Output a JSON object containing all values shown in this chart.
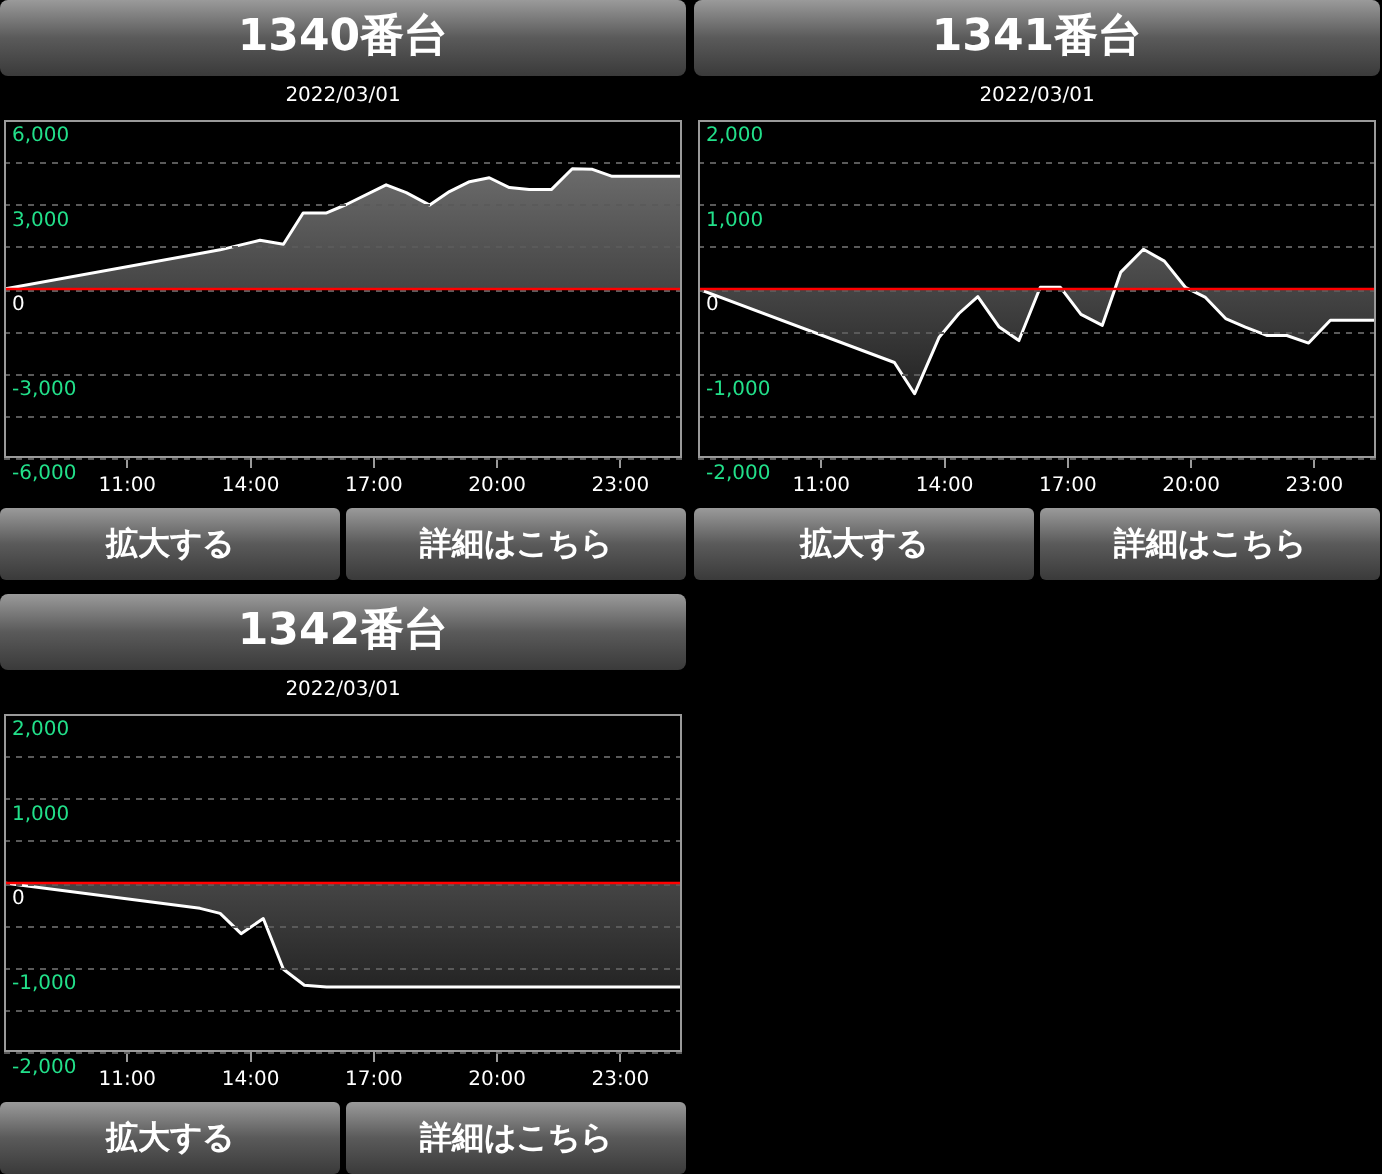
{
  "chart_data": [
    {
      "type": "area",
      "title": "1340番台",
      "subtitle": "2022/03/01",
      "series": [
        {
          "color": "#ffffff",
          "x": [
            8,
            13.26,
            14.23,
            14.8,
            15.28,
            15.85,
            16.33,
            17.3,
            17.79,
            18.36,
            18.84,
            19.33,
            19.81,
            20.3,
            20.78,
            21.32,
            21.83,
            22.32,
            22.8,
            24.5
          ],
          "values": [
            0,
            1390,
            1730,
            1590,
            2700,
            2700,
            3000,
            3700,
            3420,
            2980,
            3460,
            3810,
            3950,
            3600,
            3530,
            3530,
            4270,
            4250,
            4000,
            4000
          ]
        }
      ],
      "xlim": [
        8,
        24.5
      ],
      "xticks": [
        {
          "value": 11,
          "label": "11:00"
        },
        {
          "value": 14,
          "label": "14:00"
        },
        {
          "value": 17,
          "label": "17:00"
        },
        {
          "value": 20,
          "label": "20:00"
        },
        {
          "value": 23,
          "label": "23:00"
        }
      ],
      "ylim": [
        -6000,
        6000
      ],
      "yticks": [
        {
          "value": -6000,
          "label": "-6,000"
        },
        {
          "value": -4500,
          "label": null
        },
        {
          "value": -3000,
          "label": "-3,000"
        },
        {
          "value": -1500,
          "label": null
        },
        {
          "value": 0,
          "label": "0"
        },
        {
          "value": 1500,
          "label": null
        },
        {
          "value": 3000,
          "label": "3,000"
        },
        {
          "value": 4500,
          "label": null
        },
        {
          "value": 6000,
          "label": "6,000"
        }
      ],
      "grid": "y",
      "legend": false,
      "marker": "none",
      "line_style": "solid",
      "ref_lines": [
        {
          "axis": "y",
          "value": 0,
          "color": "#ff0000"
        }
      ],
      "annotations": [
        "拡大する",
        "詳細はこちら"
      ]
    },
    {
      "type": "area",
      "title": "1341番台",
      "subtitle": "2022/03/01",
      "series": [
        {
          "color": "#ffffff",
          "x": [
            8,
            12.78,
            13.27,
            13.87,
            14.35,
            14.81,
            15.33,
            15.81,
            16.33,
            16.82,
            17.32,
            17.84,
            18.29,
            18.84,
            19.35,
            19.86,
            20.35,
            20.84,
            21.32,
            21.84,
            22.33,
            22.86,
            23.39,
            24.5
          ],
          "values": [
            0,
            -870,
            -1240,
            -570,
            -290,
            -90,
            -450,
            -610,
            20,
            20,
            -300,
            -430,
            200,
            470,
            330,
            20,
            -100,
            -350,
            -450,
            -550,
            -550,
            -640,
            -370,
            -370
          ]
        }
      ],
      "xlim": [
        8,
        24.5
      ],
      "xticks": [
        {
          "value": 11,
          "label": "11:00"
        },
        {
          "value": 14,
          "label": "14:00"
        },
        {
          "value": 17,
          "label": "17:00"
        },
        {
          "value": 20,
          "label": "20:00"
        },
        {
          "value": 23,
          "label": "23:00"
        }
      ],
      "ylim": [
        -2000,
        2000
      ],
      "yticks": [
        {
          "value": -2000,
          "label": "-2,000"
        },
        {
          "value": -1500,
          "label": null
        },
        {
          "value": -1000,
          "label": "-1,000"
        },
        {
          "value": -500,
          "label": null
        },
        0,
        {
          "value": 500,
          "label": null
        },
        {
          "value": 1000,
          "label": "1,000"
        },
        {
          "value": 1500,
          "label": null
        },
        {
          "value": 2000,
          "label": "2,000"
        }
      ],
      "grid": "y",
      "legend": false,
      "marker": "none",
      "line_style": "solid",
      "ref_lines": [
        {
          "axis": "y",
          "value": 0,
          "color": "#ff0000"
        }
      ],
      "annotations": [
        "拡大する",
        "詳細はこちら"
      ]
    },
    {
      "type": "area",
      "title": "1342番台",
      "subtitle": "2022/03/01",
      "series": [
        {
          "color": "#ffffff",
          "x": [
            8,
            12.77,
            13.26,
            13.77,
            14.31,
            14.8,
            15.31,
            15.85,
            24.5
          ],
          "values": [
            0,
            -300,
            -360,
            -600,
            -420,
            -1020,
            -1210,
            -1230,
            -1230
          ]
        }
      ],
      "xlim": [
        8,
        24.5
      ],
      "xticks": [
        {
          "value": 11,
          "label": "11:00"
        },
        {
          "value": 14,
          "label": "14:00"
        },
        {
          "value": 17,
          "label": "17:00"
        },
        {
          "value": 20,
          "label": "20:00"
        },
        {
          "value": 23,
          "label": "23:00"
        }
      ],
      "ylim": [
        -2000,
        2000
      ],
      "yticks": [
        {
          "value": -2000,
          "label": "-2,000"
        },
        {
          "value": -1500,
          "label": null
        },
        {
          "value": -1000,
          "label": "-1,000"
        },
        {
          "value": -500,
          "label": null
        },
        0,
        {
          "value": 500,
          "label": null
        },
        {
          "value": 1000,
          "label": "1,000"
        },
        {
          "value": 1500,
          "label": null
        },
        {
          "value": 2000,
          "label": "2,000"
        }
      ],
      "grid": "y",
      "legend": false,
      "marker": "none",
      "line_style": "solid",
      "ref_lines": [
        {
          "axis": "y",
          "value": 0,
          "color": "#ff0000"
        }
      ],
      "annotations": [
        "拡大する",
        "詳細はこちら"
      ]
    }
  ]
}
